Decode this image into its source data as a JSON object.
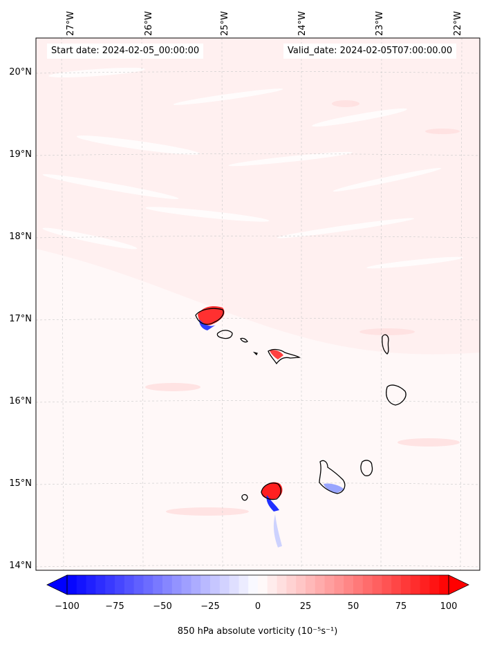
{
  "map": {
    "start_date": "Start date: 2024-02-05_00:00:00",
    "valid_date": "Valid_date: 2024-02-05T07:00:00.00",
    "lon_labels": [
      "27°W",
      "26°W",
      "25°W",
      "24°W",
      "23°W",
      "22°W"
    ],
    "lat_labels": [
      "20°N",
      "19°N",
      "18°N",
      "17°N",
      "16°N",
      "15°N",
      "14°N"
    ],
    "lon_ticks": [
      -27,
      -26,
      -25,
      -24,
      -23,
      -22
    ],
    "lat_ticks": [
      20,
      19,
      18,
      17,
      16,
      15,
      14
    ],
    "background_color": "#fff0f0",
    "coastline_color": "#000000"
  },
  "colorbar": {
    "label": "850 hPa absolute vorticity (10⁻⁵s⁻¹)",
    "tick_labels": [
      "−100",
      "−75",
      "−50",
      "−25",
      "0",
      "25",
      "50",
      "75",
      "100"
    ],
    "ticks": [
      -100,
      -75,
      -50,
      -25,
      0,
      25,
      50,
      75,
      100
    ],
    "min_color": "#0000ff",
    "mid_color": "#ffffff",
    "max_color": "#ff0000"
  }
}
